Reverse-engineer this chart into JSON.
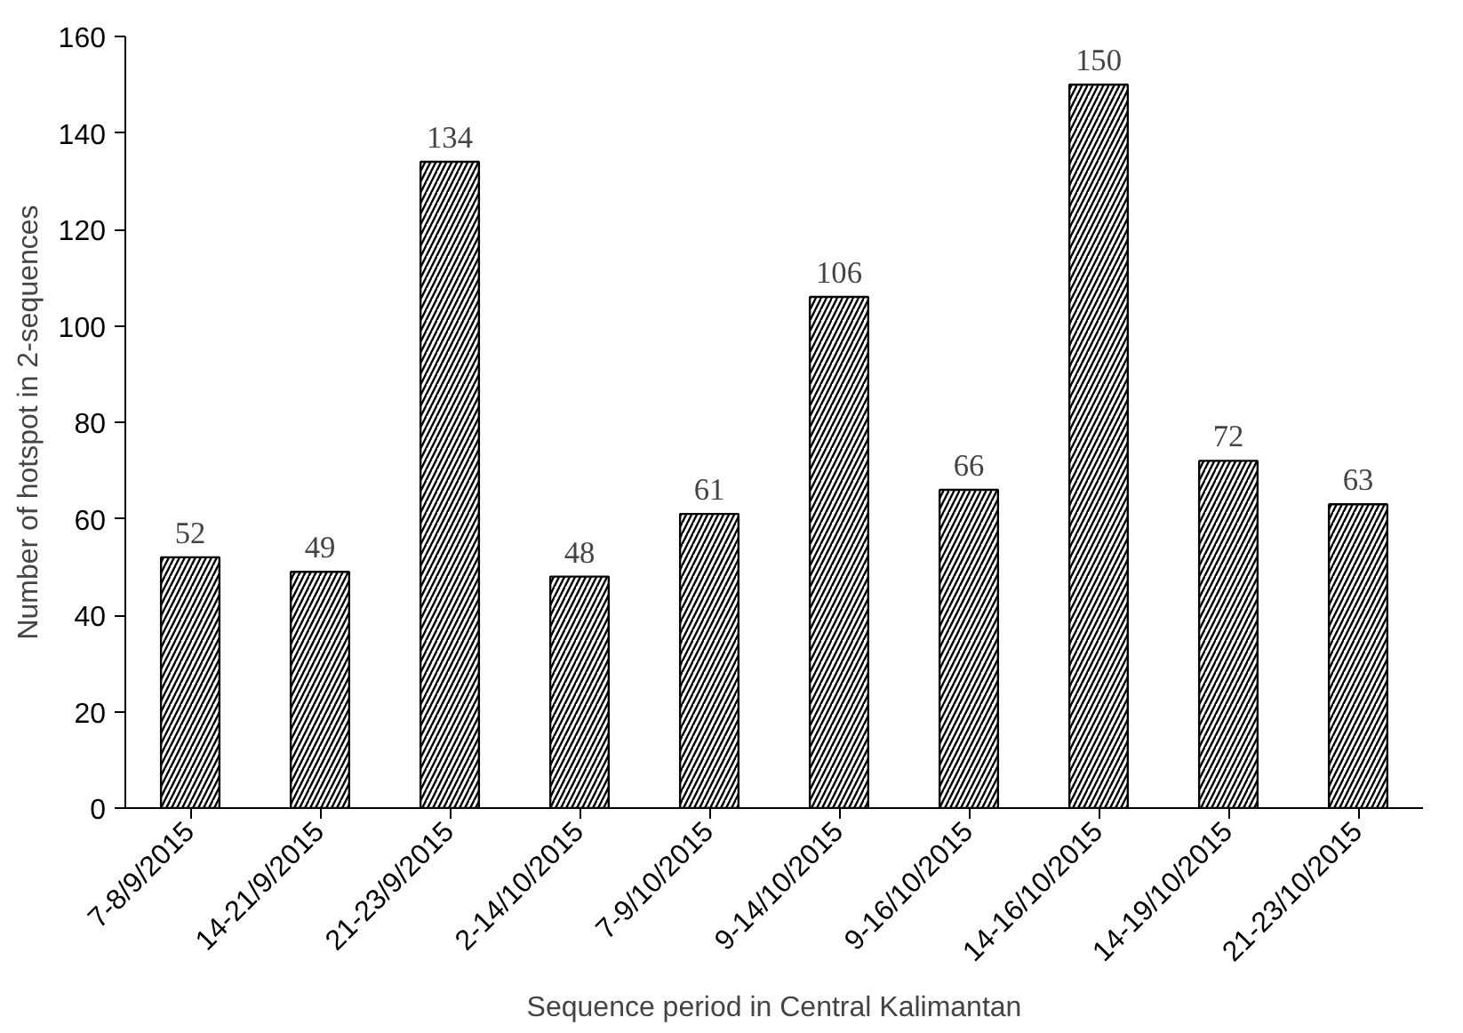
{
  "chart_data": {
    "type": "bar",
    "xlabel": "Sequence period in Central Kalimantan",
    "ylabel": "Number of hotspot in 2-sequences",
    "categories": [
      "7-8/9/2015",
      "14-21/9/2015",
      "21-23/9/2015",
      "2-14/10/2015",
      "7-9/10/2015",
      "9-14/10/2015",
      "9-16/10/2015",
      "14-16/10/2015",
      "14-19/10/2015",
      "21-23/10/2015"
    ],
    "values": [
      52,
      49,
      134,
      48,
      61,
      106,
      66,
      150,
      72,
      63
    ],
    "color": "#000000",
    "ylim": [
      0,
      160
    ],
    "yticks": [
      0,
      20,
      40,
      60,
      80,
      100,
      120,
      140,
      160
    ],
    "grid": false,
    "data_labels": true
  }
}
